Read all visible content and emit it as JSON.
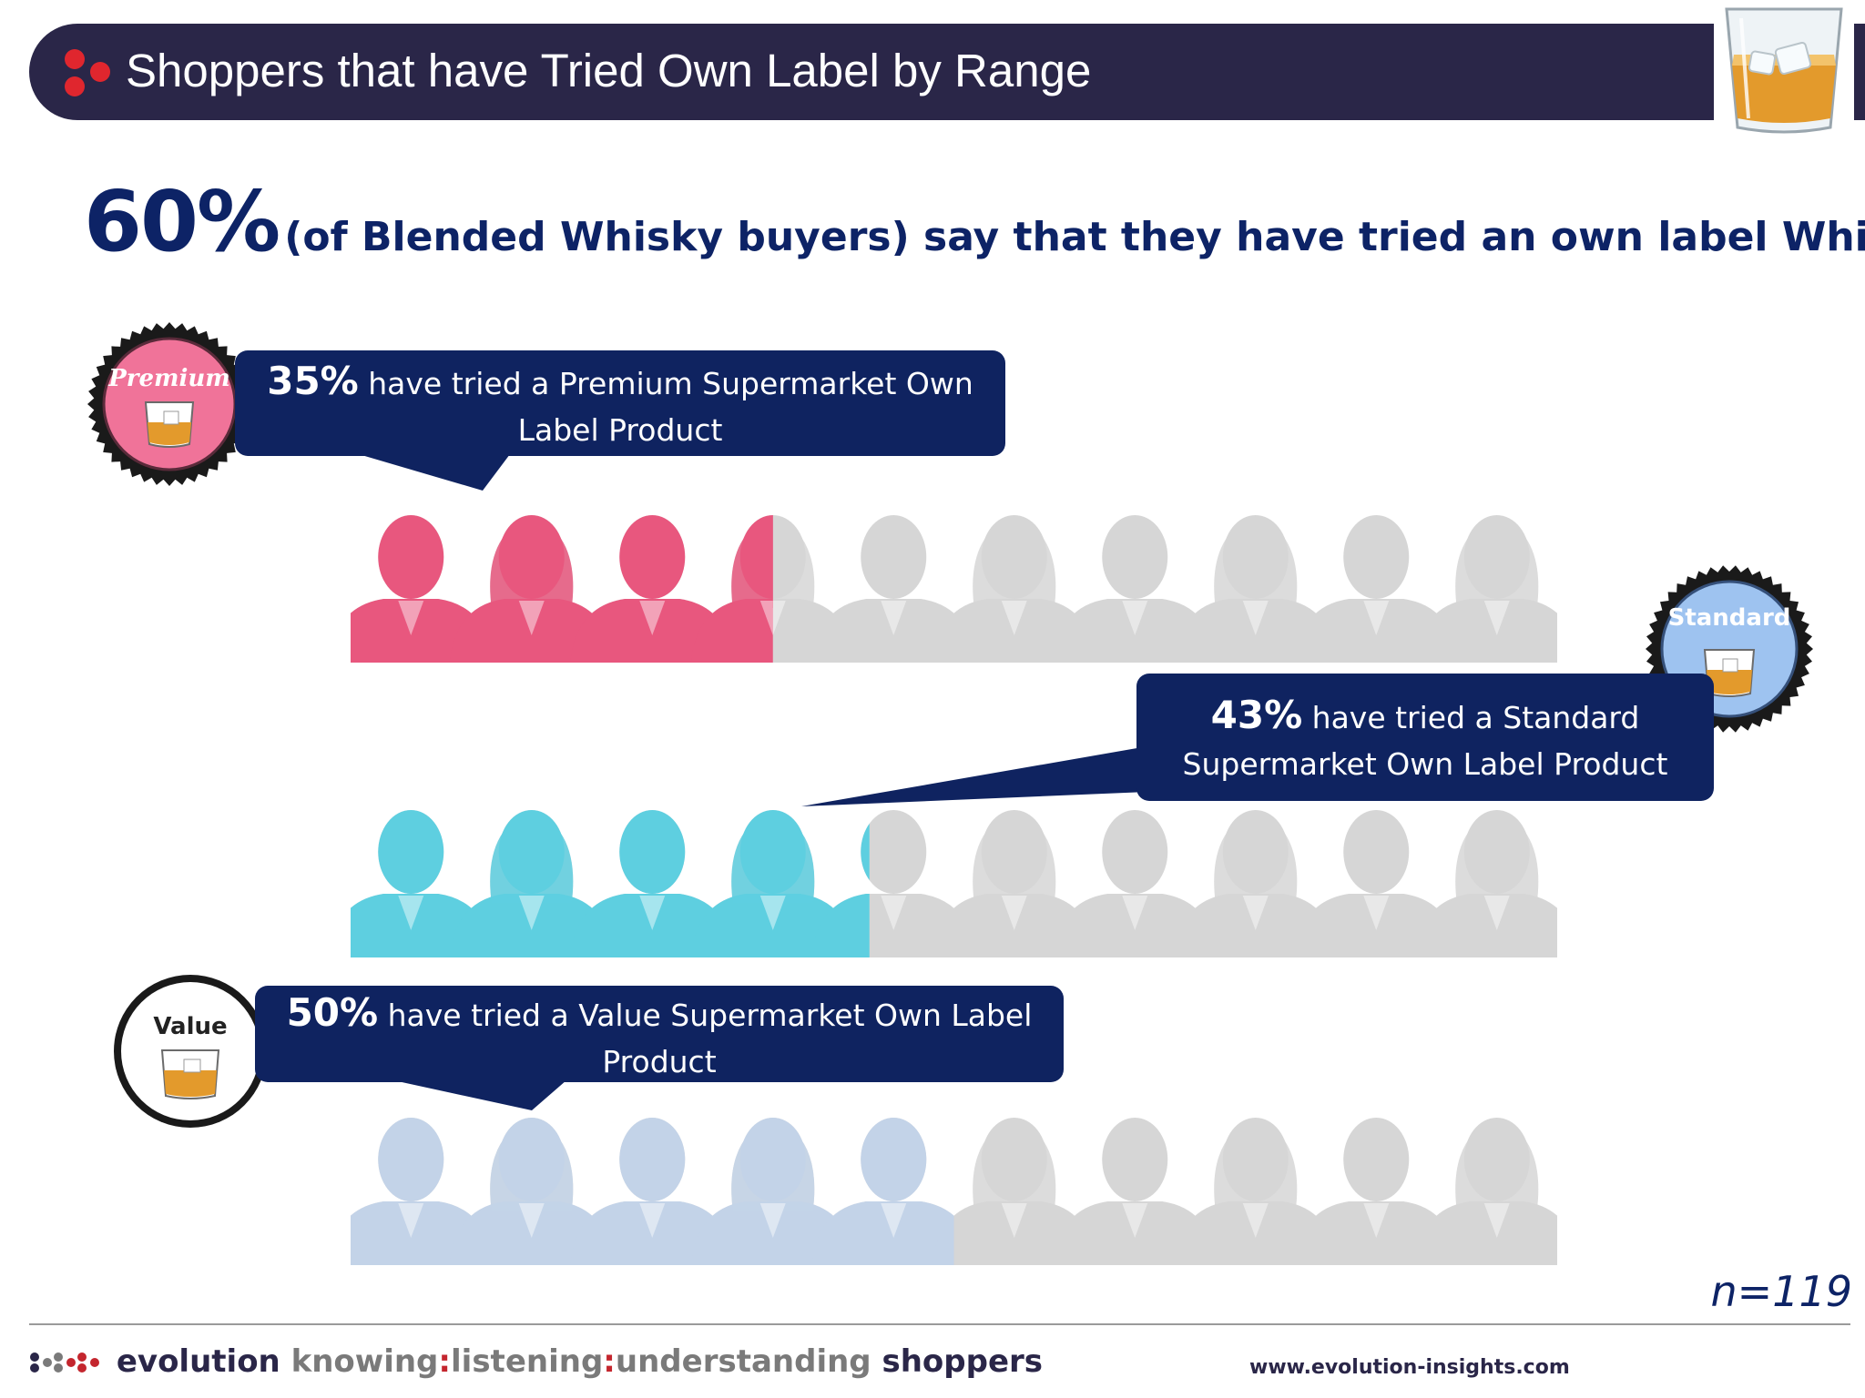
{
  "header": {
    "title": "Shoppers that have Tried Own Label by Range"
  },
  "headline": {
    "big": "60%",
    "rest": "(of Blended Whisky buyers) say that they have tried an own label Whisky"
  },
  "chart_data": {
    "type": "pictograph",
    "people_per_row": 10,
    "series": [
      {
        "name": "Premium",
        "value": 35,
        "color": "#e8577e",
        "callout_pct": "35%",
        "callout_text": "have tried a Premium Supermarket Own Label Product"
      },
      {
        "name": "Standard",
        "value": 43,
        "color": "#5ecfe0",
        "callout_pct": "43%",
        "callout_text": "have tried a Standard Supermarket Own Label Product"
      },
      {
        "name": "Value",
        "value": 50,
        "color": "#c3d3e8",
        "callout_pct": "50%",
        "callout_text": "have tried a Value Supermarket Own Label Product"
      }
    ],
    "base_color": "#c9c9c9"
  },
  "badges": {
    "premium": "Premium",
    "standard": "Standard",
    "value": "Value"
  },
  "sample": "n=119",
  "footer": {
    "brand": "evolution",
    "tag1": "knowing",
    "tag2": "listening",
    "tag3": "understanding",
    "tag4": "shoppers",
    "sep": ":",
    "url": "www.evolution-insights.com"
  }
}
